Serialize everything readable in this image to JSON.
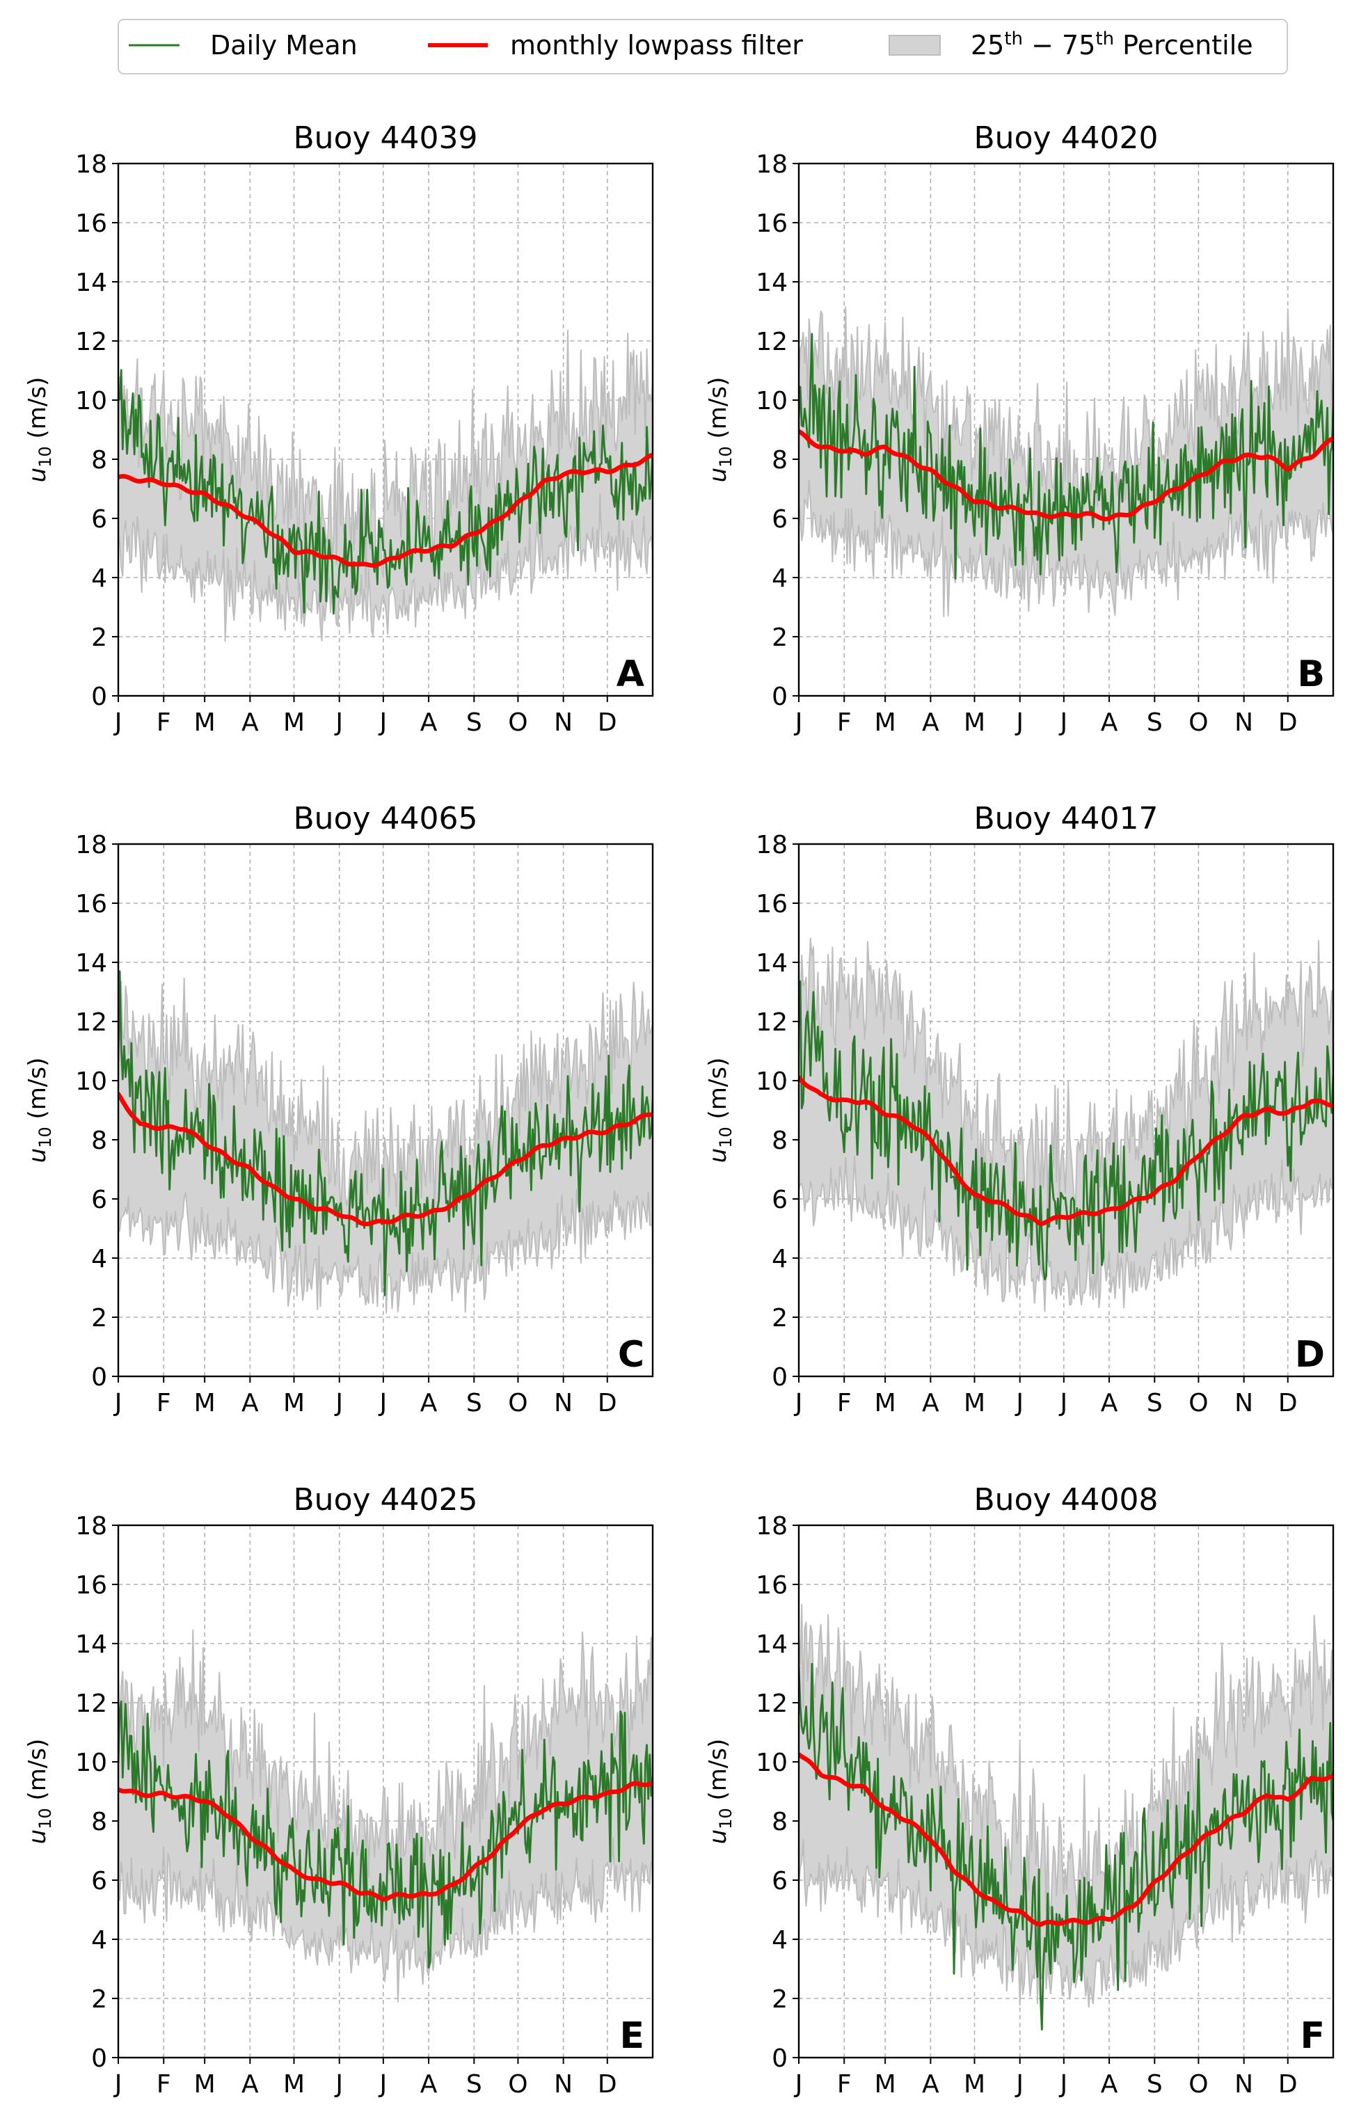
{
  "legend": {
    "position": "top-center",
    "items": [
      {
        "label": "Daily Mean",
        "kind": "line",
        "color": "#2a7a2a"
      },
      {
        "label": "monthly lowpass filter",
        "kind": "line",
        "color": "#ff0000"
      },
      {
        "label": "25th − 75th Percentile",
        "kind": "patch",
        "color": "#d3d3d3",
        "sup_a": "th",
        "sup_b": "th",
        "prefix_a": "25",
        "mid": " − 75",
        "suffix": " Percentile"
      }
    ]
  },
  "colors": {
    "daily_mean": "#2a7a2a",
    "lowpass": "#ff0000",
    "percentile_fill": "#d3d3d3",
    "percentile_edge": "#bdbdbd",
    "grid": "#b0b0b0"
  },
  "shared_axes": {
    "ylabel": "u10 (m/s)",
    "ylabel_main": "u",
    "ylabel_sub": "10",
    "ylabel_unit": " (m/s)",
    "ylim": [
      0,
      18
    ],
    "yticks": [
      0,
      2,
      4,
      6,
      8,
      10,
      12,
      14,
      16,
      18
    ],
    "xlim": [
      0,
      365
    ],
    "xtick_days": [
      0,
      31,
      59,
      90,
      120,
      151,
      181,
      212,
      243,
      273,
      304,
      334
    ],
    "xtick_labels": [
      "J",
      "F",
      "M",
      "A",
      "M",
      "J",
      "J",
      "A",
      "S",
      "O",
      "N",
      "D"
    ],
    "grid": true
  },
  "chart_data": [
    {
      "type": "line",
      "panel": "A",
      "title": "Buoy 44039",
      "x_unit": "day of year",
      "lowpass": {
        "x": [
          0,
          15,
          31,
          45,
          59,
          75,
          90,
          105,
          120,
          135,
          151,
          165,
          181,
          195,
          212,
          228,
          243,
          258,
          273,
          290,
          304,
          320,
          334,
          350,
          365
        ],
        "y": [
          7.4,
          7.3,
          7.2,
          7.0,
          6.8,
          6.4,
          6.0,
          5.5,
          4.9,
          4.8,
          4.6,
          4.4,
          4.5,
          4.8,
          4.95,
          5.1,
          5.5,
          5.9,
          6.5,
          7.2,
          7.5,
          7.6,
          7.6,
          7.8,
          8.1
        ]
      },
      "daily_mean_sketch": {
        "x": [
          0,
          31,
          59,
          90,
          120,
          151,
          181,
          212,
          243,
          273,
          304,
          334,
          365
        ],
        "y": [
          9.8,
          7.2,
          6.9,
          6.1,
          4.9,
          4.6,
          4.5,
          5.0,
          5.6,
          6.5,
          7.5,
          7.6,
          7.2
        ],
        "noise_sd": 0.9
      },
      "p25": {
        "x": [
          0,
          31,
          59,
          90,
          120,
          151,
          181,
          212,
          243,
          273,
          304,
          334,
          365
        ],
        "y": [
          5.3,
          4.5,
          4.0,
          3.5,
          3.0,
          3.0,
          3.2,
          3.4,
          3.6,
          4.5,
          5.0,
          5.2,
          5.0
        ]
      },
      "p75": {
        "x": [
          0,
          31,
          59,
          90,
          120,
          151,
          181,
          212,
          243,
          273,
          304,
          334,
          365
        ],
        "y": [
          10.0,
          9.6,
          9.3,
          8.2,
          6.7,
          6.1,
          6.3,
          6.8,
          7.4,
          8.6,
          9.6,
          9.9,
          10.6
        ]
      }
    },
    {
      "type": "line",
      "panel": "B",
      "title": "Buoy 44020",
      "x_unit": "day of year",
      "lowpass": {
        "x": [
          0,
          15,
          31,
          45,
          59,
          75,
          90,
          105,
          120,
          135,
          151,
          165,
          181,
          195,
          212,
          228,
          243,
          258,
          273,
          290,
          304,
          320,
          334,
          350,
          365
        ],
        "y": [
          8.9,
          8.4,
          8.3,
          8.2,
          8.4,
          8.0,
          7.6,
          7.1,
          6.6,
          6.4,
          6.3,
          6.1,
          6.1,
          6.15,
          6.0,
          6.2,
          6.6,
          7.0,
          7.4,
          7.9,
          8.1,
          8.1,
          7.7,
          8.1,
          8.7
        ]
      },
      "daily_mean_sketch": {
        "x": [
          0,
          31,
          59,
          90,
          120,
          151,
          181,
          212,
          243,
          273,
          304,
          334,
          365
        ],
        "y": [
          10.2,
          8.5,
          8.5,
          7.7,
          6.7,
          6.4,
          6.0,
          6.1,
          6.7,
          7.5,
          8.2,
          7.9,
          8.6
        ],
        "noise_sd": 1.0
      },
      "p25": {
        "x": [
          0,
          31,
          59,
          90,
          120,
          151,
          181,
          212,
          243,
          273,
          304,
          334,
          365
        ],
        "y": [
          6.0,
          5.5,
          5.3,
          4.6,
          4.3,
          4.1,
          4.0,
          3.9,
          4.2,
          4.7,
          5.3,
          5.6,
          5.8
        ]
      },
      "p75": {
        "x": [
          0,
          31,
          59,
          90,
          120,
          151,
          181,
          212,
          243,
          273,
          304,
          334,
          365
        ],
        "y": [
          11.8,
          11.0,
          11.1,
          10.0,
          8.8,
          8.2,
          7.9,
          8.0,
          8.6,
          9.8,
          10.8,
          10.6,
          11.2
        ]
      }
    },
    {
      "type": "line",
      "panel": "C",
      "title": "Buoy 44065",
      "x_unit": "day of year",
      "lowpass": {
        "x": [
          0,
          15,
          31,
          45,
          59,
          75,
          90,
          105,
          120,
          135,
          151,
          165,
          181,
          195,
          212,
          228,
          243,
          258,
          273,
          290,
          304,
          320,
          334,
          350,
          365
        ],
        "y": [
          9.5,
          8.5,
          8.4,
          8.4,
          7.9,
          7.4,
          7.0,
          6.4,
          6.0,
          5.7,
          5.5,
          5.2,
          5.2,
          5.4,
          5.5,
          5.8,
          6.3,
          6.8,
          7.3,
          7.8,
          8.0,
          8.2,
          8.3,
          8.6,
          8.9
        ]
      },
      "daily_mean_sketch": {
        "x": [
          0,
          31,
          59,
          90,
          120,
          151,
          181,
          212,
          243,
          273,
          304,
          334,
          365
        ],
        "y": [
          10.7,
          8.5,
          7.9,
          7.1,
          6.0,
          5.5,
          5.2,
          5.5,
          6.3,
          7.3,
          8.0,
          8.4,
          8.9
        ],
        "noise_sd": 0.95
      },
      "p25": {
        "x": [
          0,
          31,
          59,
          90,
          120,
          151,
          181,
          212,
          243,
          273,
          304,
          334,
          365
        ],
        "y": [
          5.5,
          5.2,
          4.8,
          4.2,
          3.6,
          3.3,
          3.1,
          3.3,
          3.7,
          4.4,
          5.0,
          5.3,
          5.6
        ]
      },
      "p75": {
        "x": [
          0,
          31,
          59,
          90,
          120,
          151,
          181,
          212,
          243,
          273,
          304,
          334,
          365
        ],
        "y": [
          12.0,
          11.2,
          10.6,
          10.0,
          8.5,
          7.5,
          7.1,
          7.3,
          8.2,
          9.6,
          10.6,
          11.0,
          11.9
        ]
      }
    },
    {
      "type": "line",
      "panel": "D",
      "title": "Buoy 44017",
      "x_unit": "day of year",
      "lowpass": {
        "x": [
          0,
          15,
          31,
          45,
          59,
          75,
          90,
          105,
          120,
          135,
          151,
          165,
          181,
          195,
          212,
          228,
          243,
          258,
          273,
          290,
          304,
          320,
          334,
          350,
          365
        ],
        "y": [
          10.1,
          9.5,
          9.3,
          9.3,
          8.9,
          8.6,
          8.0,
          7.0,
          6.1,
          5.9,
          5.5,
          5.2,
          5.4,
          5.5,
          5.6,
          5.9,
          6.2,
          6.7,
          7.5,
          8.2,
          8.8,
          9.0,
          8.9,
          9.3,
          9.2
        ]
      },
      "daily_mean_sketch": {
        "x": [
          0,
          31,
          59,
          90,
          120,
          151,
          181,
          212,
          243,
          273,
          304,
          334,
          365
        ],
        "y": [
          11.5,
          9.5,
          9.0,
          8.2,
          6.1,
          5.4,
          5.3,
          5.6,
          6.3,
          7.5,
          8.8,
          9.0,
          9.2
        ],
        "noise_sd": 1.05
      },
      "p25": {
        "x": [
          0,
          31,
          59,
          90,
          120,
          151,
          181,
          212,
          243,
          273,
          304,
          334,
          365
        ],
        "y": [
          6.0,
          6.0,
          5.6,
          4.9,
          4.0,
          3.4,
          3.2,
          3.2,
          3.7,
          4.6,
          5.7,
          6.1,
          6.3
        ]
      },
      "p75": {
        "x": [
          0,
          31,
          59,
          90,
          120,
          151,
          181,
          212,
          243,
          273,
          304,
          334,
          365
        ],
        "y": [
          13.2,
          12.8,
          12.5,
          11.3,
          8.7,
          7.4,
          7.4,
          7.7,
          8.7,
          10.3,
          12.0,
          12.4,
          12.6
        ]
      }
    },
    {
      "type": "line",
      "panel": "E",
      "title": "Buoy 44025",
      "x_unit": "day of year",
      "lowpass": {
        "x": [
          0,
          15,
          31,
          45,
          59,
          75,
          90,
          105,
          120,
          135,
          151,
          165,
          181,
          195,
          212,
          228,
          243,
          258,
          273,
          290,
          304,
          320,
          334,
          350,
          365
        ],
        "y": [
          9.1,
          8.9,
          8.9,
          8.8,
          8.7,
          8.2,
          7.5,
          6.9,
          6.3,
          6.0,
          5.9,
          5.6,
          5.4,
          5.5,
          5.5,
          5.8,
          6.4,
          7.0,
          7.8,
          8.4,
          8.6,
          8.8,
          8.9,
          9.2,
          9.3
        ]
      },
      "daily_mean_sketch": {
        "x": [
          0,
          31,
          59,
          90,
          120,
          151,
          181,
          212,
          243,
          273,
          304,
          334,
          365
        ],
        "y": [
          11.0,
          8.9,
          8.7,
          7.7,
          6.4,
          5.9,
          5.5,
          5.5,
          6.5,
          8.0,
          8.7,
          9.0,
          9.5
        ],
        "noise_sd": 1.0
      },
      "p25": {
        "x": [
          0,
          31,
          59,
          90,
          120,
          151,
          181,
          212,
          243,
          273,
          304,
          334,
          365
        ],
        "y": [
          5.8,
          5.8,
          5.5,
          4.9,
          4.1,
          3.8,
          3.5,
          3.4,
          3.9,
          4.9,
          5.6,
          5.9,
          6.1
        ]
      },
      "p75": {
        "x": [
          0,
          31,
          59,
          90,
          120,
          151,
          181,
          212,
          243,
          273,
          304,
          334,
          365
        ],
        "y": [
          12.0,
          12.0,
          11.8,
          10.4,
          8.8,
          8.0,
          7.5,
          7.6,
          9.0,
          10.8,
          11.8,
          12.1,
          12.5
        ]
      }
    },
    {
      "type": "line",
      "panel": "F",
      "title": "Buoy 44008",
      "x_unit": "day of year",
      "lowpass": {
        "x": [
          0,
          15,
          31,
          45,
          59,
          75,
          90,
          105,
          120,
          135,
          151,
          165,
          181,
          195,
          212,
          228,
          243,
          258,
          273,
          290,
          304,
          320,
          334,
          350,
          365
        ],
        "y": [
          10.3,
          9.6,
          9.3,
          9.1,
          8.4,
          8.0,
          7.4,
          6.4,
          5.7,
          5.2,
          4.9,
          4.5,
          4.6,
          4.6,
          4.7,
          5.1,
          5.9,
          6.6,
          7.3,
          7.9,
          8.3,
          8.9,
          8.7,
          9.4,
          9.5
        ]
      },
      "daily_mean_sketch": {
        "x": [
          0,
          31,
          59,
          90,
          120,
          151,
          181,
          212,
          243,
          273,
          304,
          334,
          365
        ],
        "y": [
          12.2,
          9.6,
          8.6,
          7.7,
          5.9,
          4.9,
          4.6,
          4.8,
          6.1,
          7.4,
          8.4,
          8.8,
          9.5
        ],
        "noise_sd": 1.1
      },
      "p25": {
        "x": [
          0,
          31,
          59,
          90,
          120,
          151,
          181,
          212,
          243,
          273,
          304,
          334,
          365
        ],
        "y": [
          6.0,
          6.0,
          5.6,
          4.7,
          3.6,
          3.0,
          2.8,
          2.7,
          3.4,
          4.5,
          5.5,
          6.0,
          6.1
        ]
      },
      "p75": {
        "x": [
          0,
          31,
          59,
          90,
          120,
          151,
          181,
          212,
          243,
          273,
          304,
          334,
          365
        ],
        "y": [
          13.8,
          13.0,
          11.8,
          10.6,
          8.4,
          7.1,
          6.7,
          6.9,
          8.5,
          10.4,
          12.1,
          12.6,
          13.5
        ]
      }
    }
  ]
}
